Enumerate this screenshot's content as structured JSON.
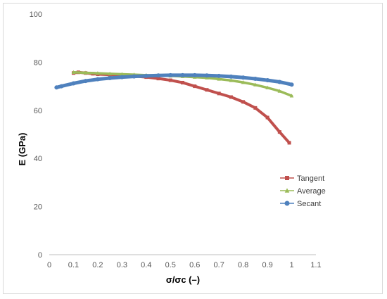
{
  "chart_data": {
    "type": "scatter",
    "xlabel": "σ/σc (–)",
    "ylabel": "E (GPa)",
    "xlim": [
      0,
      1.1
    ],
    "ylim": [
      0,
      100
    ],
    "x_ticks": [
      "0",
      "0.1",
      "0.2",
      "0.3",
      "0.4",
      "0.5",
      "0.6",
      "0.7",
      "0.8",
      "0.9",
      "1",
      "1.1"
    ],
    "y_ticks": [
      "0",
      "20",
      "40",
      "60",
      "80",
      "100"
    ],
    "grid": false,
    "legend_position": "right",
    "series": [
      {
        "name": "Tangent",
        "color": "#c0504d",
        "marker": "square",
        "x": [
          0.1,
          0.12,
          0.15,
          0.18,
          0.2,
          0.25,
          0.3,
          0.35,
          0.4,
          0.45,
          0.5,
          0.55,
          0.6,
          0.65,
          0.7,
          0.75,
          0.8,
          0.85,
          0.9,
          0.95,
          0.99
        ],
        "y": [
          75.5,
          75.8,
          75.5,
          75.2,
          75.0,
          74.8,
          74.5,
          74.2,
          73.8,
          73.2,
          72.5,
          71.5,
          70.0,
          68.5,
          67.0,
          65.5,
          63.5,
          61.0,
          57.0,
          51.0,
          46.5
        ]
      },
      {
        "name": "Average",
        "color": "#9bbb59",
        "marker": "triangle",
        "x": [
          0.1,
          0.15,
          0.2,
          0.25,
          0.3,
          0.35,
          0.4,
          0.45,
          0.5,
          0.55,
          0.6,
          0.65,
          0.7,
          0.75,
          0.8,
          0.85,
          0.9,
          0.95,
          1.0
        ],
        "y": [
          75.8,
          75.6,
          75.4,
          75.2,
          75.0,
          74.8,
          74.6,
          74.5,
          74.3,
          74.1,
          73.8,
          73.5,
          73.0,
          72.4,
          71.6,
          70.6,
          69.4,
          68.0,
          66.0
        ]
      },
      {
        "name": "Secant",
        "color": "#4f81bd",
        "marker": "circle",
        "x": [
          0.03,
          0.05,
          0.1,
          0.15,
          0.2,
          0.25,
          0.3,
          0.35,
          0.4,
          0.45,
          0.5,
          0.55,
          0.6,
          0.65,
          0.7,
          0.75,
          0.8,
          0.85,
          0.9,
          0.95,
          1.0
        ],
        "y": [
          69.5,
          70.0,
          71.2,
          72.2,
          72.9,
          73.4,
          73.8,
          74.1,
          74.3,
          74.5,
          74.6,
          74.6,
          74.6,
          74.5,
          74.3,
          74.0,
          73.6,
          73.1,
          72.5,
          71.8,
          70.7
        ]
      }
    ]
  }
}
